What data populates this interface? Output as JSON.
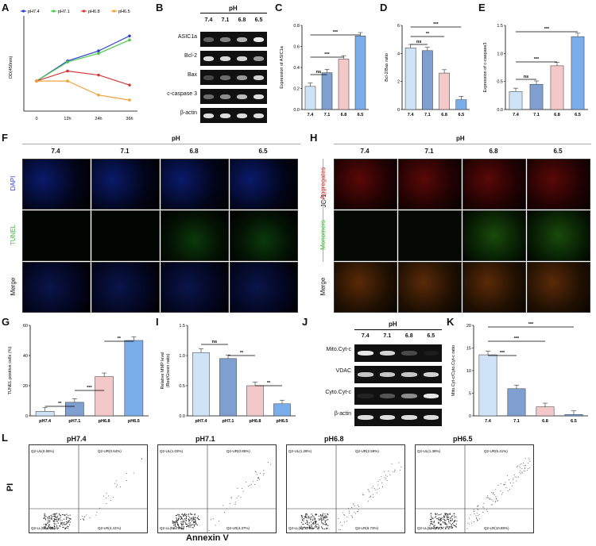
{
  "panels": {
    "A": {
      "letter": "A",
      "ylabel": "OD(450nm)",
      "x_ticks": [
        "0",
        "12h",
        "24h",
        "36h"
      ],
      "legend": [
        "pH7.4",
        "pH7.1",
        "pH6.8",
        "pH6.5"
      ],
      "colors": [
        "#2a3fd4",
        "#4cc94c",
        "#d43a3a",
        "#f0a33a"
      ],
      "chart_data": {
        "type": "line",
        "x": [
          "0",
          "12h",
          "24h",
          "36h"
        ],
        "series": [
          {
            "name": "pH7.4",
            "values": [
              0.9,
              1.3,
              1.5,
              1.8
            ]
          },
          {
            "name": "pH7.1",
            "values": [
              0.9,
              1.28,
              1.45,
              1.72
            ]
          },
          {
            "name": "pH6.8",
            "values": [
              0.9,
              1.1,
              1.02,
              0.82
            ]
          },
          {
            "name": "pH6.5",
            "values": [
              0.9,
              0.9,
              0.62,
              0.52
            ]
          }
        ],
        "ylim": [
          0.3,
          2.2
        ]
      }
    },
    "B": {
      "letter": "B",
      "header": "pH",
      "cols": [
        "7.4",
        "7.1",
        "6.8",
        "6.5"
      ],
      "rows": [
        "ASIC1a",
        "Bcl-2",
        "Bax",
        "c-caspase 3",
        "β-actin"
      ]
    },
    "C": {
      "letter": "C",
      "ylabel": "Expression of ASIC1a",
      "y_ticks": [
        "0.0",
        "0.2",
        "0.4",
        "0.6",
        "0.8"
      ],
      "sig": [
        "ns",
        "***",
        "***"
      ],
      "chart_data": {
        "type": "bar",
        "categories": [
          "7.4",
          "7.1",
          "6.8",
          "6.5"
        ],
        "values": [
          0.22,
          0.35,
          0.48,
          0.7
        ],
        "ylim": [
          0,
          0.8
        ]
      }
    },
    "D": {
      "letter": "D",
      "ylabel": "Bcl-2/Bax ratio",
      "y_ticks": [
        "0",
        "2",
        "4",
        "6"
      ],
      "sig": [
        "ns",
        "**",
        "***"
      ],
      "chart_data": {
        "type": "bar",
        "categories": [
          "7.4",
          "7.1",
          "6.8",
          "6.5"
        ],
        "values": [
          4.4,
          4.2,
          2.6,
          0.7
        ],
        "ylim": [
          0,
          6
        ]
      }
    },
    "E": {
      "letter": "E",
      "ylabel": "Expression of c-caspase3",
      "y_ticks": [
        "0.0",
        "0.5",
        "1.0",
        "1.5"
      ],
      "sig": [
        "ns",
        "***",
        "***"
      ],
      "chart_data": {
        "type": "bar",
        "categories": [
          "7.4",
          "7.1",
          "6.8",
          "6.5"
        ],
        "values": [
          0.32,
          0.45,
          0.78,
          1.3
        ],
        "ylim": [
          0,
          1.5
        ]
      }
    },
    "F": {
      "letter": "F",
      "header": "pH",
      "cols": [
        "7.4",
        "7.1",
        "6.8",
        "6.5"
      ],
      "rows": [
        "DAPI",
        "TUNEL",
        "Merge"
      ]
    },
    "H": {
      "letter": "H",
      "header": "pH",
      "cols": [
        "7.4",
        "7.1",
        "6.8",
        "6.5"
      ],
      "group": "JC-1",
      "rows": [
        "Aggregates",
        "Monomers",
        "Merge"
      ]
    },
    "G": {
      "letter": "G",
      "ylabel": "TUNEL positive cells (%)",
      "y_ticks": [
        "0",
        "20",
        "40",
        "60"
      ],
      "sig": [
        "**",
        "***",
        "**"
      ],
      "chart_data": {
        "type": "bar",
        "categories": [
          "pH7.4",
          "pH7.1",
          "pH6.8",
          "pH6.5"
        ],
        "values": [
          3,
          9,
          26,
          50
        ],
        "ylim": [
          0,
          60
        ]
      }
    },
    "I": {
      "letter": "I",
      "ylabel": "Relative MMP level\n(Red/Green ratio)",
      "y_ticks": [
        "0.0",
        "0.5",
        "1.0",
        "1.5"
      ],
      "sig": [
        "ns",
        "**",
        "**"
      ],
      "chart_data": {
        "type": "bar",
        "categories": [
          "pH7.4",
          "pH7.1",
          "pH6.8",
          "pH6.5"
        ],
        "values": [
          1.05,
          0.95,
          0.5,
          0.2
        ],
        "ylim": [
          0,
          1.5
        ]
      }
    },
    "J": {
      "letter": "J",
      "header": "pH",
      "cols": [
        "7.4",
        "7.1",
        "6.8",
        "6.5"
      ],
      "rows": [
        "Mito.Cyt-c",
        "VDAC",
        "Cyto.Cyt-c",
        "β-actin"
      ]
    },
    "K": {
      "letter": "K",
      "ylabel": "Mito.Cyt-c/Cyto.Cyt-c ratio",
      "y_ticks": [
        "0",
        "5",
        "10",
        "15",
        "20"
      ],
      "sig": [
        "***",
        "***",
        "***"
      ],
      "chart_data": {
        "type": "bar",
        "categories": [
          "7.4",
          "7.1",
          "6.8",
          "6.5"
        ],
        "values": [
          13.5,
          6,
          2,
          0.3
        ],
        "ylim": [
          0,
          20
        ]
      }
    },
    "L": {
      "letter": "L",
      "ylabel": "PI",
      "xlabel": "Annexin V",
      "plots": [
        {
          "title": "pH7.4",
          "ul": "Q2-UL(0.55%)",
          "ur": "Q2-UR(0.64%)",
          "ll": "Q2-LL(94.81%)",
          "lr": "Q2-LR(4.41%)"
        },
        {
          "title": "pH7.1",
          "ul": "Q2-UL(1.03%)",
          "ur": "Q2-UR(0.85%)",
          "ll": "Q2-LL(93.78%)",
          "lr": "Q2-LR(4.37%)"
        },
        {
          "title": "pH6.8",
          "ul": "Q2-UL(1.28%)",
          "ur": "Q2-UR(2.59%)",
          "ll": "Q2-LL(89.40%)",
          "lr": "Q2-LR(6.73%)"
        },
        {
          "title": "pH6.5",
          "ul": "Q2-UL(1.38%)",
          "ur": "Q2-UR(5.41%)",
          "ll": "Q2-LL(82.39%)",
          "lr": "Q2-LR(10.89%)"
        }
      ]
    }
  },
  "bar_colors": [
    "#cfe3f7",
    "#7f9fd0",
    "#f3c8c8",
    "#7aaeea"
  ]
}
